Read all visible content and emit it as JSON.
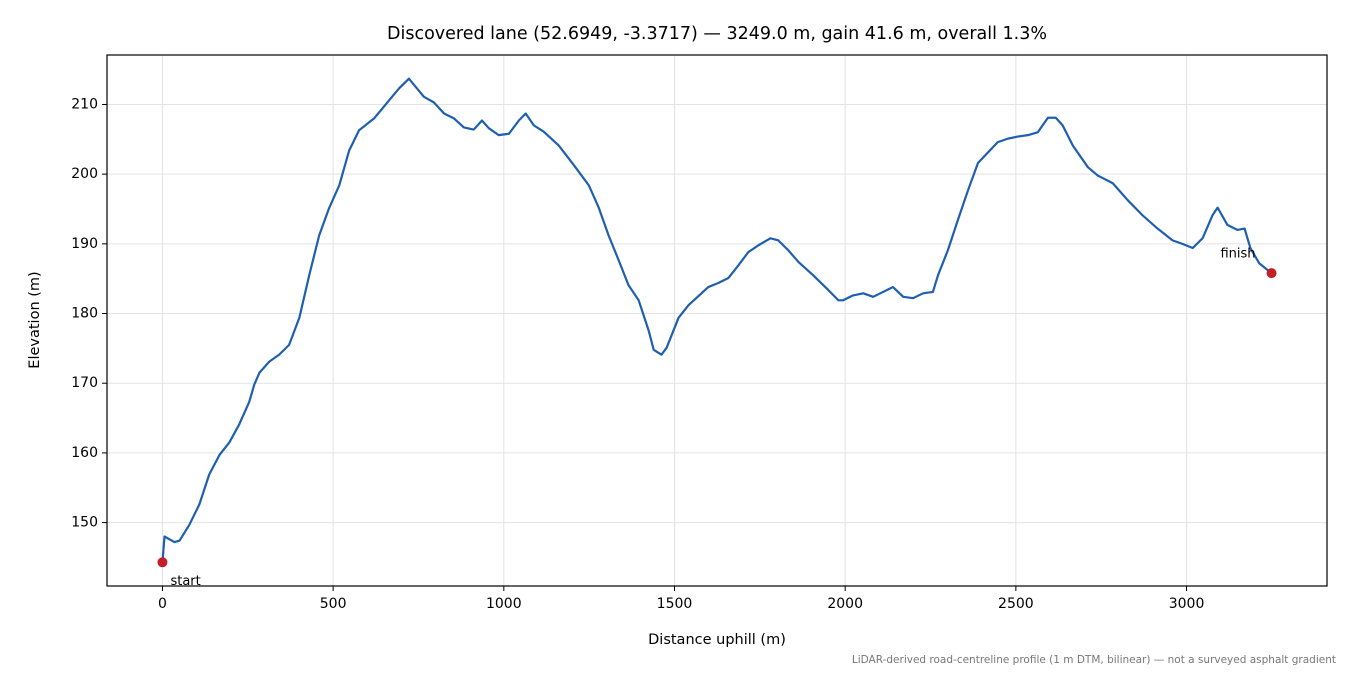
{
  "chart_data": {
    "type": "line",
    "title": "Discovered lane (52.6949, -3.3717) — 3249.0 m, gain 41.6 m, overall 1.3%",
    "x_label": "Distance uphill (m)",
    "y_label": "Elevation (m)",
    "footnote": "LiDAR-derived road-centreline profile (1 m DTM, bilinear) — not a surveyed asphalt gradient",
    "grid": true,
    "xlim": [
      -162.45,
      3411.45
    ],
    "ylim": [
      140.9,
      217.1
    ],
    "xticks": [
      0,
      500,
      1000,
      1500,
      2000,
      2500,
      3000
    ],
    "yticks": [
      150,
      160,
      170,
      180,
      190,
      200,
      210
    ],
    "series": [
      {
        "color": "#1f5fb0",
        "x": [
          0,
          6,
          35,
          50,
          79,
          108,
          137,
          167,
          196,
          225,
          254,
          269,
          284,
          313,
          342,
          371,
          401,
          430,
          459,
          488,
          518,
          547,
          576,
          620,
          664,
          693,
          722,
          766,
          795,
          825,
          854,
          883,
          912,
          936,
          956,
          985,
          1015,
          1044,
          1064,
          1088,
          1117,
          1161,
          1205,
          1249,
          1278,
          1307,
          1336,
          1365,
          1395,
          1424,
          1439,
          1462,
          1477,
          1512,
          1541,
          1599,
          1629,
          1658,
          1687,
          1716,
          1746,
          1781,
          1804,
          1833,
          1863,
          1906,
          1950,
          1980,
          1994,
          2023,
          2053,
          2082,
          2111,
          2140,
          2170,
          2199,
          2228,
          2257,
          2272,
          2301,
          2330,
          2360,
          2389,
          2447,
          2477,
          2506,
          2535,
          2564,
          2594,
          2617,
          2637,
          2667,
          2711,
          2740,
          2784,
          2827,
          2871,
          2915,
          2959,
          2988,
          3018,
          3047,
          3076,
          3091,
          3120,
          3149,
          3170,
          3187,
          3213,
          3249
        ],
        "values": [
          144.3,
          148.0,
          147.2,
          147.4,
          149.7,
          152.6,
          156.9,
          159.7,
          161.5,
          164.1,
          167.3,
          169.8,
          171.5,
          173.1,
          174.1,
          175.5,
          179.4,
          185.5,
          191.2,
          195.1,
          198.4,
          203.4,
          206.3,
          208.0,
          210.6,
          212.3,
          213.7,
          211.1,
          210.3,
          208.7,
          208.0,
          206.7,
          206.4,
          207.7,
          206.6,
          205.6,
          205.8,
          207.7,
          208.7,
          207.0,
          206.1,
          204.1,
          201.3,
          198.4,
          195.2,
          191.2,
          187.7,
          184.1,
          181.9,
          177.6,
          174.8,
          174.1,
          175.1,
          179.4,
          181.2,
          183.8,
          184.4,
          185.1,
          186.9,
          188.8,
          189.8,
          190.8,
          190.5,
          189.1,
          187.4,
          185.5,
          183.4,
          181.9,
          181.9,
          182.6,
          182.9,
          182.4,
          183.1,
          183.8,
          182.4,
          182.2,
          182.9,
          183.1,
          185.5,
          189.1,
          193.4,
          197.7,
          201.6,
          204.6,
          205.1,
          205.4,
          205.6,
          206.0,
          208.1,
          208.1,
          207.0,
          204.1,
          201.0,
          199.8,
          198.7,
          196.3,
          194.1,
          192.2,
          190.5,
          190.0,
          189.4,
          190.8,
          194.1,
          195.2,
          192.7,
          192.0,
          192.2,
          189.4,
          187.2,
          185.8
        ]
      }
    ],
    "annotations": [
      {
        "text": "start",
        "x": 0,
        "y": 144.3,
        "color": "#c41e2a"
      },
      {
        "text": "finish",
        "x": 3249,
        "y": 185.8,
        "color": "#c41e2a"
      }
    ]
  }
}
